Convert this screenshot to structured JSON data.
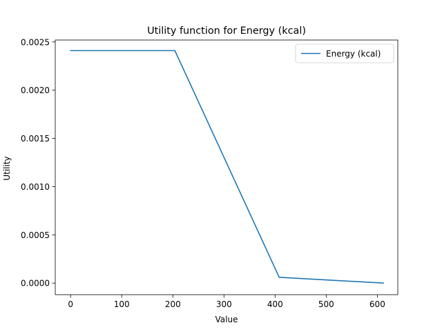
{
  "chart_data": {
    "type": "line",
    "title": "Utility function for Energy (kcal)",
    "xlabel": "Value",
    "ylabel": "Utility",
    "xlim": [
      -30,
      640
    ],
    "ylim": [
      -0.00012,
      0.00252
    ],
    "xticks": [
      0,
      100,
      200,
      300,
      400,
      500,
      600
    ],
    "xtick_labels": [
      "0",
      "100",
      "200",
      "300",
      "400",
      "500",
      "600"
    ],
    "yticks": [
      0.0,
      0.0005,
      0.001,
      0.0015,
      0.002,
      0.0025
    ],
    "ytick_labels": [
      "0.0000",
      "0.0005",
      "0.0010",
      "0.0015",
      "0.0020",
      "0.0025"
    ],
    "grid": false,
    "legend_position": "top-right",
    "series": [
      {
        "name": "Energy (kcal)",
        "color": "#1f77b4",
        "x": [
          0,
          204,
          408,
          612
        ],
        "y": [
          0.00241,
          0.00241,
          6e-05,
          0.0
        ]
      }
    ]
  }
}
